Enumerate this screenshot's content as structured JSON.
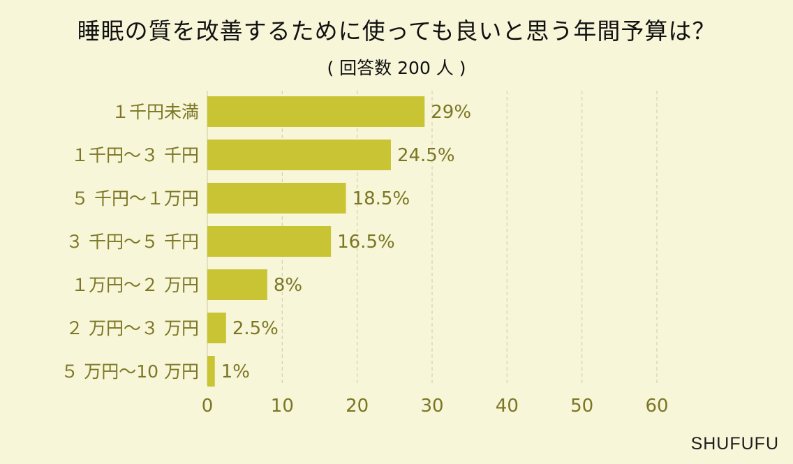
{
  "title": "睡眠の質を改善するために使っても良いと思う年間予算は？",
  "subtitle": "( 回答数 200 人 )",
  "brand": "SHUFUFU",
  "colors": {
    "background": "#f7f6d8",
    "bar": "#c9c434",
    "tick_text": "#7c7624",
    "category_text": "#7c7624",
    "grid": "#d5d2b0"
  },
  "chart_data": {
    "type": "bar",
    "orientation": "horizontal",
    "categories": [
      "１千円未満",
      "１千円～３ 千円",
      "５ 千円～１万円",
      "３ 千円～５ 千円",
      "１万円～２ 万円",
      "２ 万円～３ 万円",
      "５ 万円～10 万円"
    ],
    "values": [
      29,
      24.5,
      18.5,
      16.5,
      8,
      2.5,
      1
    ],
    "value_labels": [
      "29%",
      "24.5%",
      "18.5%",
      "16.5%",
      "8%",
      "2.5%",
      "1%"
    ],
    "xlim": [
      0,
      60
    ],
    "xticks": [
      0,
      10,
      20,
      30,
      40,
      50,
      60
    ],
    "grid": "vertical dashed",
    "legend": "none"
  }
}
